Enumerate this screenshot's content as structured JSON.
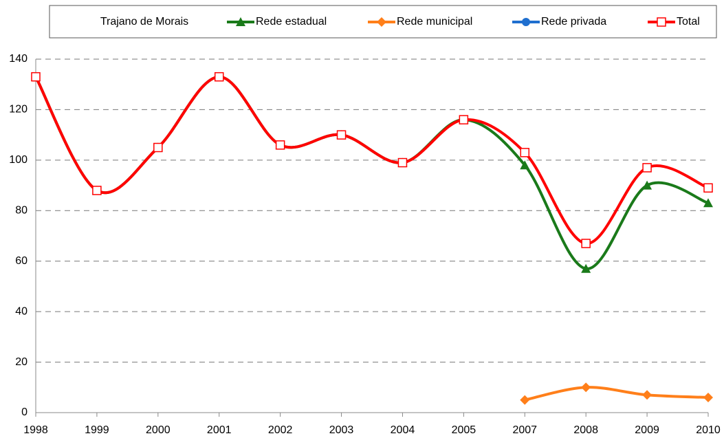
{
  "chart_data": {
    "type": "line",
    "title": "Trajano de Morais",
    "categories": [
      "1998",
      "1999",
      "2000",
      "2001",
      "2002",
      "2003",
      "2004",
      "2005",
      "2007",
      "2008",
      "2009",
      "2010"
    ],
    "series": [
      {
        "name": "Rede estadual",
        "color": "#1a7a1a",
        "marker": "triangle",
        "values": [
          133,
          88,
          105,
          133,
          106,
          110,
          99,
          116,
          98,
          57,
          90,
          83
        ]
      },
      {
        "name": "Rede municipal",
        "color": "#ff7f1a",
        "marker": "diamond",
        "values": [
          null,
          null,
          null,
          null,
          null,
          null,
          null,
          null,
          5,
          10,
          7,
          6
        ]
      },
      {
        "name": "Rede privada",
        "color": "#1f6fcf",
        "marker": "circle",
        "values": [
          null,
          null,
          null,
          null,
          null,
          null,
          null,
          null,
          null,
          null,
          null,
          null
        ]
      },
      {
        "name": "Total",
        "color": "#ff0000",
        "marker": "square-open",
        "values": [
          133,
          88,
          105,
          133,
          106,
          110,
          99,
          116,
          103,
          67,
          97,
          89
        ]
      }
    ],
    "ylim": [
      0,
      140
    ],
    "yticks": [
      0,
      20,
      40,
      60,
      80,
      100,
      120,
      140
    ],
    "grid": true,
    "smooth": true
  }
}
